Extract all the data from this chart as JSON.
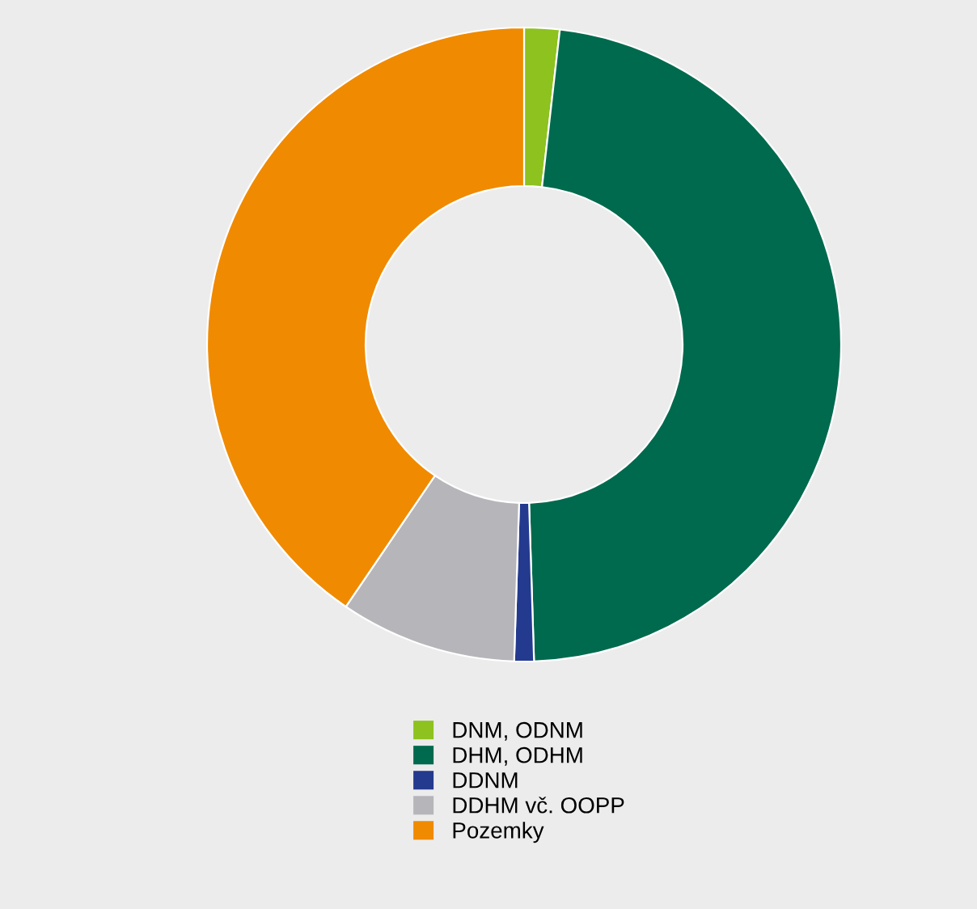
{
  "chart_data": {
    "type": "donut",
    "categories": [
      "DNM, ODNM",
      "DHM, ODHM",
      "DDNM",
      "DDHM vč. OOPP",
      "Pozemky"
    ],
    "values": [
      1.8,
      47.7,
      1.0,
      9.0,
      40.5
    ],
    "colors": [
      "#8dc21f",
      "#006a4e",
      "#233a8e",
      "#b5b5ba",
      "#f08a00"
    ],
    "legend": "bottom"
  }
}
